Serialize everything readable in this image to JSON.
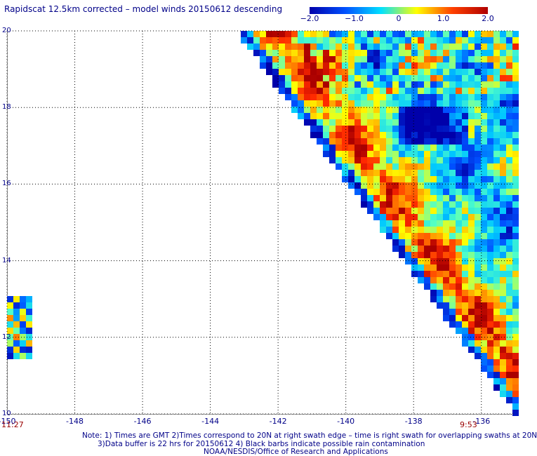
{
  "title": "Rapidscat 12.5km corrected – model winds 20150612 descending",
  "colorbar": {
    "ticks": [
      "−2.0",
      "−1.0",
      "0",
      "1.0",
      "2.0"
    ],
    "tick_values": [
      -2.0,
      -1.0,
      0,
      1.0,
      2.0
    ],
    "colors": [
      "#0000aa",
      "#0050ff",
      "#00e0ff",
      "#ffff00",
      "#ff4000",
      "#b00000"
    ]
  },
  "map": {
    "lon_range": [
      -150,
      -135
    ],
    "lat_range": [
      10,
      20
    ],
    "x_ticks": [
      "-150",
      "-148",
      "-146",
      "-144",
      "-142",
      "-140",
      "-138",
      "-136"
    ],
    "x_tick_values": [
      -150,
      -148,
      -146,
      -144,
      -142,
      -140,
      -138,
      -136
    ],
    "y_ticks": [
      "20",
      "18",
      "16",
      "14",
      "12",
      "10"
    ],
    "y_tick_values": [
      20,
      18,
      16,
      14,
      12,
      10
    ],
    "time_left": "11:27",
    "time_right": "9:53",
    "grid": "dotted"
  },
  "notes": {
    "line1": "Note: 1) Times are GMT 2)Times correspond to 20N at right swath edge – time is right swath for overlapping swaths at 20N",
    "line2": "3)Data buffer is 22 hrs for 20150612 4) Black barbs indicate possible rain contamination",
    "line3": "NOAA/NESDIS/Office of Research and Applications"
  }
}
